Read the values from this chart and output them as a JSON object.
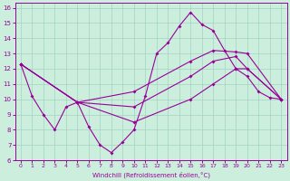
{
  "xlabel": "Windchill (Refroidissement éolien,°C)",
  "bg_color": "#cceedd",
  "line_color": "#990099",
  "xlim": [
    -0.5,
    23.5
  ],
  "ylim": [
    6,
    16.3
  ],
  "xticks": [
    0,
    1,
    2,
    3,
    4,
    5,
    6,
    7,
    8,
    9,
    10,
    11,
    12,
    13,
    14,
    15,
    16,
    17,
    18,
    19,
    20,
    21,
    22,
    23
  ],
  "yticks": [
    6,
    7,
    8,
    9,
    10,
    11,
    12,
    13,
    14,
    15,
    16
  ],
  "series": [
    {
      "x": [
        0,
        1,
        2,
        3,
        4,
        5,
        6,
        7,
        8,
        9,
        10,
        11,
        12,
        13,
        14,
        15,
        16,
        17,
        18,
        19,
        20,
        21,
        22,
        23
      ],
      "y": [
        12.3,
        10.2,
        9.0,
        8.0,
        9.5,
        9.8,
        8.2,
        7.0,
        6.5,
        7.2,
        8.0,
        10.2,
        13.0,
        13.7,
        14.8,
        15.7,
        14.9,
        14.5,
        13.2,
        12.0,
        11.5,
        10.5,
        10.1,
        10.0
      ]
    },
    {
      "x": [
        0,
        5,
        10,
        15,
        17,
        19,
        20,
        23
      ],
      "y": [
        12.3,
        9.8,
        10.5,
        12.5,
        13.2,
        13.1,
        13.0,
        10.0
      ]
    },
    {
      "x": [
        0,
        5,
        10,
        15,
        17,
        19,
        20,
        23
      ],
      "y": [
        12.3,
        9.8,
        9.5,
        11.5,
        12.5,
        12.8,
        12.0,
        10.0
      ]
    },
    {
      "x": [
        0,
        5,
        10,
        15,
        17,
        19,
        20,
        23
      ],
      "y": [
        12.3,
        9.8,
        8.5,
        10.0,
        11.0,
        12.0,
        12.0,
        10.0
      ]
    }
  ]
}
